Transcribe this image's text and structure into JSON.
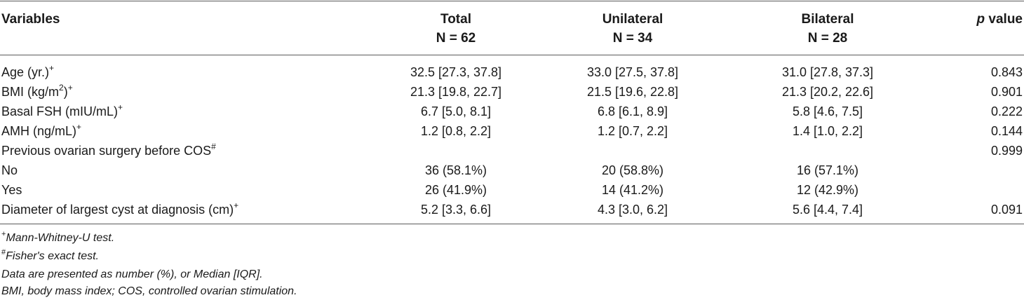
{
  "header": {
    "variables": "Variables",
    "total": "Total",
    "total_n": "N = 62",
    "unilateral": "Unilateral",
    "unilateral_n": "N = 34",
    "bilateral": "Bilateral",
    "bilateral_n": "N = 28",
    "p": "p",
    "p_rest": " value"
  },
  "rows": [
    {
      "label": "Age (yr.)",
      "sup": "+",
      "total": "32.5 [27.3, 37.8]",
      "unilateral": "33.0 [27.5, 37.8]",
      "bilateral": "31.0 [27.8, 37.3]",
      "p": "0.843"
    },
    {
      "label_a": "BMI (kg/m",
      "label_sup2": "2",
      "label_b": ")",
      "sup": "+",
      "total": "21.3 [19.8, 22.7]",
      "unilateral": "21.5 [19.6, 22.8]",
      "bilateral": "21.3 [20.2, 22.6]",
      "p": "0.901"
    },
    {
      "label": "Basal FSH (mIU/mL)",
      "sup": "+",
      "total": "6.7 [5.0, 8.1]",
      "unilateral": "6.8 [6.1, 8.9]",
      "bilateral": "5.8 [4.6, 7.5]",
      "p": "0.222"
    },
    {
      "label": "AMH (ng/mL)",
      "sup": "+",
      "total": "1.2 [0.8, 2.2]",
      "unilateral": "1.2 [0.7, 2.2]",
      "bilateral": "1.4 [1.0, 2.2]",
      "p": "0.144"
    },
    {
      "label": "Previous ovarian surgery before COS",
      "sup": "#",
      "total": "",
      "unilateral": "",
      "bilateral": "",
      "p": "0.999"
    },
    {
      "label": "No",
      "sup": "",
      "total": "36 (58.1%)",
      "unilateral": "20 (58.8%)",
      "bilateral": "16 (57.1%)",
      "p": ""
    },
    {
      "label": "Yes",
      "sup": "",
      "total": "26 (41.9%)",
      "unilateral": "14 (41.2%)",
      "bilateral": "12 (42.9%)",
      "p": ""
    },
    {
      "label": "Diameter of largest cyst at diagnosis (cm)",
      "sup": "+",
      "total": "5.2 [3.3, 6.6]",
      "unilateral": "4.3 [3.0, 6.2]",
      "bilateral": "5.6 [4.4, 7.4]",
      "p": "0.091"
    }
  ],
  "notes": [
    {
      "sup": "+",
      "text": "Mann-Whitney-U test."
    },
    {
      "sup": "#",
      "text": "Fisher's exact test."
    },
    {
      "sup": "",
      "text": "Data are presented as number (%), or Median [IQR]."
    },
    {
      "sup": "",
      "text": "BMI, body mass index; COS, controlled ovarian stimulation."
    }
  ]
}
